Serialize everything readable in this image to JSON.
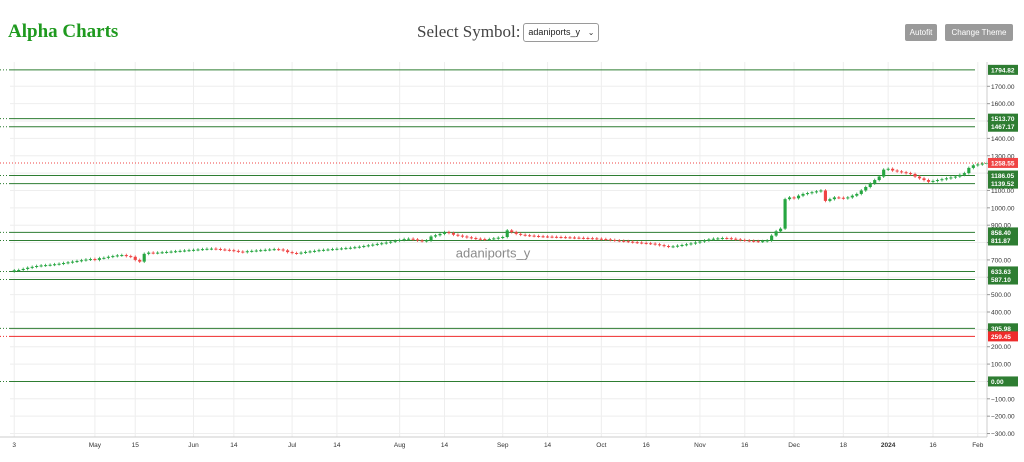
{
  "header": {
    "brand": "Alpha Charts",
    "symbol_label": "Select Symbol:",
    "symbol_value": "adaniports_y",
    "chevron_icon": "chevron-down-icon",
    "autofit_label": "Autofit",
    "theme_label": "Change Theme",
    "brand_color": "#1f9a1f"
  },
  "chart_data": {
    "type": "candlestick",
    "watermark": "adaniports_y",
    "ylim": [
      -320,
      1840
    ],
    "y_ticks": [
      -300,
      -200,
      -100,
      0,
      100,
      200,
      300,
      400,
      500,
      600,
      700,
      800,
      900,
      1000,
      1100,
      1200,
      1300,
      1400,
      1500,
      1600,
      1700
    ],
    "y_tick_labels": [
      "−300.00",
      "−200.00",
      "−100.00",
      "0.00",
      "100.00",
      "200.00",
      "300.00",
      "400.00",
      "500.00",
      "600.00",
      "700.00",
      "800.00",
      "900.00",
      "1000.00",
      "1100.00",
      "1200.00",
      "1300.00",
      "1400.00",
      "1500.00",
      "1600.00",
      "1700.00"
    ],
    "x_tick_labels": [
      "3",
      "May",
      "15",
      "Jun",
      "14",
      "Jul",
      "14",
      "Aug",
      "14",
      "Sep",
      "14",
      "Oct",
      "16",
      "Nov",
      "16",
      "Dec",
      "18",
      "2024",
      "16",
      "Feb"
    ],
    "x_tick_index": [
      0,
      18,
      27,
      40,
      49,
      62,
      72,
      86,
      96,
      109,
      119,
      131,
      141,
      153,
      163,
      174,
      185,
      195,
      205,
      215
    ],
    "price_lines": [
      {
        "value": 1794.82,
        "label": "1794.82",
        "color": "#2e7d32"
      },
      {
        "value": 1513.7,
        "label": "1513.70",
        "color": "#2e7d32"
      },
      {
        "value": 1467.17,
        "label": "1467.17",
        "color": "#2e7d32"
      },
      {
        "value": 1186.05,
        "label": "1186.05",
        "color": "#2e7d32"
      },
      {
        "value": 1139.52,
        "label": "1139.52",
        "color": "#2e7d32"
      },
      {
        "value": 858.4,
        "label": "858.40",
        "color": "#2e7d32"
      },
      {
        "value": 811.87,
        "label": "811.87",
        "color": "#2e7d32"
      },
      {
        "value": 633.63,
        "label": "633.63",
        "color": "#2e7d32"
      },
      {
        "value": 587.1,
        "label": "587.10",
        "color": "#2e7d32"
      },
      {
        "value": 305.98,
        "label": "305.98",
        "color": "#2e7d32"
      },
      {
        "value": 259.45,
        "label": "259.45",
        "color": "#ef2b2b"
      },
      {
        "value": 0.0,
        "label": "0.00",
        "color": "#2e7d32"
      }
    ],
    "last_price": {
      "value": 1258.55,
      "label": "1258.55",
      "color": "#ef4444"
    },
    "colors": {
      "up": "#26a641",
      "down": "#ef4444"
    },
    "closes": [
      640,
      642,
      648,
      655,
      660,
      665,
      668,
      670,
      672,
      675,
      678,
      682,
      686,
      690,
      694,
      698,
      702,
      705,
      700,
      710,
      712,
      718,
      722,
      726,
      728,
      722,
      718,
      700,
      690,
      735,
      742,
      740,
      742,
      744,
      746,
      748,
      750,
      752,
      754,
      756,
      758,
      760,
      762,
      764,
      765,
      763,
      760,
      758,
      756,
      752,
      748,
      745,
      750,
      752,
      754,
      756,
      758,
      760,
      762,
      760,
      755,
      745,
      740,
      738,
      742,
      746,
      749,
      752,
      756,
      758,
      760,
      762,
      764,
      766,
      768,
      770,
      773,
      776,
      780,
      784,
      788,
      792,
      796,
      800,
      805,
      810,
      815,
      820,
      822,
      818,
      812,
      808,
      812,
      835,
      842,
      850,
      860,
      855,
      845,
      840,
      835,
      830,
      826,
      822,
      820,
      818,
      820,
      824,
      828,
      832,
      870,
      860,
      850,
      845,
      842,
      840,
      838,
      836,
      835,
      834,
      833,
      832,
      831,
      830,
      829,
      828,
      827,
      826,
      825,
      824,
      822,
      820,
      818,
      815,
      812,
      810,
      808,
      805,
      802,
      800,
      798,
      796,
      794,
      790,
      785,
      780,
      776,
      778,
      782,
      786,
      790,
      795,
      800,
      806,
      812,
      818,
      822,
      824,
      826,
      825,
      822,
      818,
      815,
      812,
      810,
      808,
      806,
      808,
      812,
      840,
      865,
      880,
      1050,
      1060,
      1055,
      1070,
      1080,
      1085,
      1090,
      1095,
      1100,
      1040,
      1050,
      1060,
      1058,
      1055,
      1060,
      1070,
      1080,
      1100,
      1120,
      1140,
      1160,
      1180,
      1220,
      1225,
      1215,
      1210,
      1205,
      1200,
      1195,
      1180,
      1170,
      1160,
      1150,
      1155,
      1160,
      1165,
      1170,
      1175,
      1180,
      1190,
      1200,
      1230,
      1245,
      1250,
      1255,
      1258.55
    ]
  }
}
